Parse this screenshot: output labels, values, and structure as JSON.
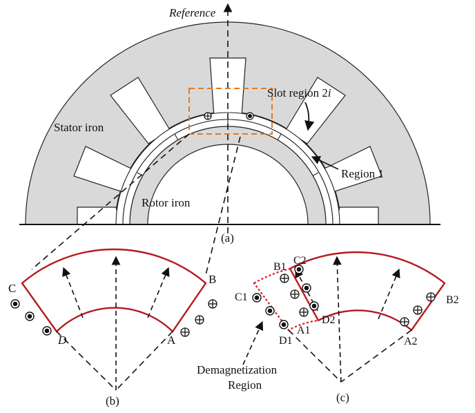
{
  "labels": {
    "reference": "Reference",
    "stator_iron": "Stator iron",
    "rotor_iron": "Rotor iron",
    "slot_region": "Slot region 2",
    "slot_region_italic": "i",
    "region1": "Region 1",
    "fig_a": "(a)",
    "fig_b": "(b)",
    "fig_c": "(c)",
    "b_corner_c": "C",
    "b_corner_b": "B",
    "b_corner_d": "D",
    "b_corner_a": "A",
    "c_b1": "B1",
    "c_c2": "C2",
    "c_c1": "C1",
    "c_a1": "A1",
    "c_d2": "D2",
    "c_d1": "D1",
    "c_b2": "B2",
    "c_a2": "A2",
    "demag_line1": "Demagnetization",
    "demag_line2": "Region"
  },
  "colors": {
    "stator_fill": "#d9d9d9",
    "rotor_fill": "#d9d9d9",
    "boundary_red": "#b3191f",
    "demag_red": "#d9272e",
    "orange_box": "#e07b22"
  },
  "icons": {
    "dot_current": "circle-dot-icon",
    "cross_current": "circle-plus-icon"
  }
}
